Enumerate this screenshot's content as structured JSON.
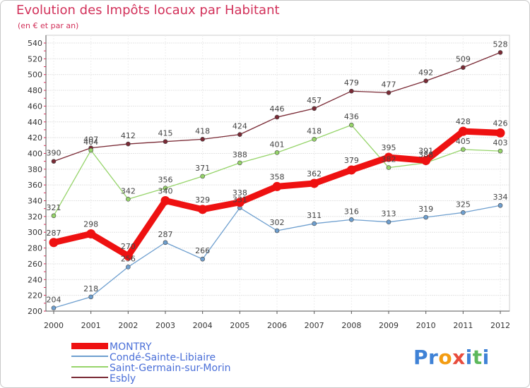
{
  "chart_data": {
    "type": "line",
    "title": "Evolution des Impôts locaux par Habitant",
    "subtitle": "(en € et par an)",
    "x": [
      2000,
      2001,
      2002,
      2003,
      2004,
      2005,
      2006,
      2007,
      2008,
      2009,
      2010,
      2011,
      2012
    ],
    "x_tick_labels": [
      "2000",
      "2001",
      "2002",
      "2003",
      "2004",
      "2005",
      "2006",
      "2007",
      "2008",
      "2009",
      "2010",
      "2011",
      "2012"
    ],
    "ylim": [
      200,
      540
    ],
    "y_ticks": [
      200,
      220,
      240,
      260,
      280,
      300,
      320,
      340,
      360,
      380,
      400,
      420,
      440,
      460,
      480,
      500,
      520,
      540
    ],
    "grid": "horizontal",
    "legend_position": "bottom-left",
    "series": [
      {
        "name": "Esbly",
        "color": "#7a2a35",
        "values": [
          390,
          407,
          412,
          415,
          418,
          424,
          446,
          457,
          479,
          477,
          492,
          509,
          528
        ]
      },
      {
        "name": "Saint-Germain-sur-Morin",
        "color": "#96d46a",
        "values": [
          321,
          404,
          342,
          356,
          371,
          388,
          401,
          418,
          436,
          382,
          388,
          405,
          403
        ]
      },
      {
        "name": "Condé-Sainte-Libiaire",
        "color": "#6e9fcf",
        "values": [
          204,
          218,
          256,
          287,
          266,
          331,
          302,
          311,
          316,
          313,
          319,
          325,
          334
        ]
      },
      {
        "name": "MONTRY",
        "color": "#ee1111",
        "values": [
          287,
          298,
          270,
          340,
          329,
          338,
          358,
          362,
          379,
          395,
          391,
          428,
          426
        ]
      }
    ]
  },
  "legend": {
    "items": [
      {
        "label": "MONTRY",
        "color": "#ee1111"
      },
      {
        "label": "Condé-Sainte-Libiaire",
        "color": "#6e9fcf"
      },
      {
        "label": "Saint-Germain-sur-Morin",
        "color": "#96d46a"
      },
      {
        "label": "Esbly",
        "color": "#7a2a35"
      }
    ]
  },
  "logo": {
    "text": "Proxiti",
    "letters": [
      {
        "ch": "P",
        "color": "#3f82d6"
      },
      {
        "ch": "r",
        "color": "#3f82d6"
      },
      {
        "ch": "o",
        "color": "#f39c12"
      },
      {
        "ch": "x",
        "color": "#e84c3d"
      },
      {
        "ch": "i",
        "color": "#3f82d6"
      },
      {
        "ch": "t",
        "color": "#5cb85c"
      },
      {
        "ch": "i",
        "color": "#3f82d6"
      }
    ]
  }
}
